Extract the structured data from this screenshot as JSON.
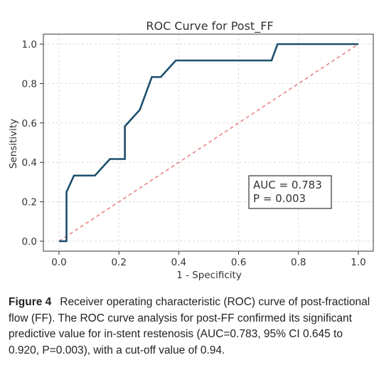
{
  "chart_data": {
    "type": "line",
    "title": "ROC Curve for Post_FF",
    "xlabel": "1 - Specificity",
    "ylabel": "Sensitivity",
    "xlim": [
      0.0,
      1.0
    ],
    "ylim": [
      0.0,
      1.0
    ],
    "xticks": [
      "0.0",
      "0.2",
      "0.4",
      "0.6",
      "0.8",
      "1.0"
    ],
    "yticks": [
      "0.0",
      "0.2",
      "0.4",
      "0.6",
      "0.8",
      "1.0"
    ],
    "grid": true,
    "series": [
      {
        "color": "#1d4f6e",
        "x": [
          0.0,
          0.025,
          0.025,
          0.05,
          0.12,
          0.17,
          0.22,
          0.22,
          0.27,
          0.31,
          0.34,
          0.39,
          0.71,
          0.73,
          1.0
        ],
        "y": [
          0.0,
          0.0,
          0.25,
          0.333,
          0.333,
          0.417,
          0.417,
          0.583,
          0.667,
          0.833,
          0.833,
          0.917,
          0.917,
          1.0,
          1.0
        ]
      },
      {
        "color": "#e87c7c",
        "style": "dashed",
        "x": [
          0.0,
          1.0
        ],
        "y": [
          0.0,
          1.0
        ]
      }
    ],
    "annotations": [
      "AUC = 0.783",
      "P = 0.003"
    ]
  },
  "caption": {
    "label": "Figure 4",
    "text": "Receiver operating characteristic (ROC) curve of post-fractional flow (FF). The ROC curve analysis for post-FF confirmed its significant predictive value for in-stent restenosis (AUC=0.783, 95% CI 0.645 to 0.920, P=0.003), with a cut-off value of 0.94."
  }
}
